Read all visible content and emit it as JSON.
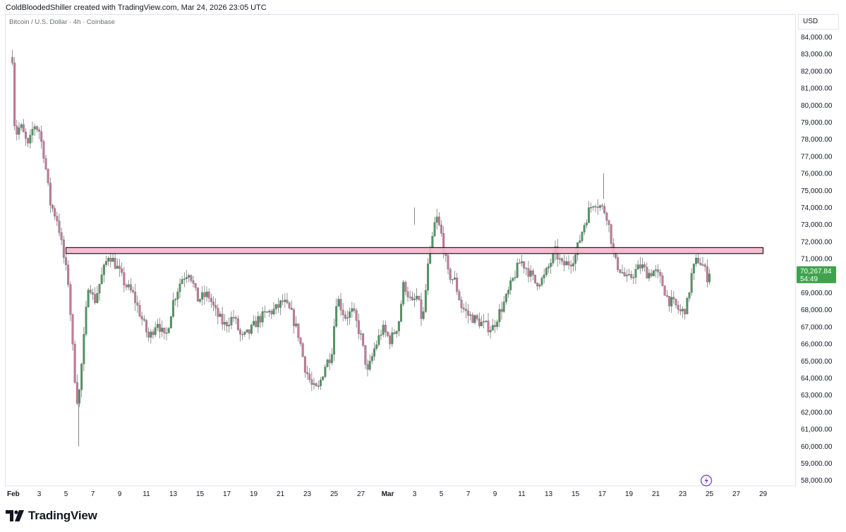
{
  "header": {
    "created_text": "ColdBloodedShiller created with TradingView.com, Mar 24, 2026 23:05 UTC"
  },
  "symbol_info": "Bitcoin / U.S. Dollar · 4h · Coinbase",
  "currency": "USD",
  "footer": {
    "brand": "TradingView",
    "logo_icon": "tradingview-logo-icon"
  },
  "colors": {
    "up": "#4c9a60",
    "down": "#c67a9b",
    "zone_fill": "#f5b6cd",
    "zone_border": "#1a1a1a",
    "last_price_bg": "#3fa34d"
  },
  "chart_data": {
    "type": "candlestick",
    "ylim": [
      57700,
      85300
    ],
    "y_ticks": [
      58000,
      59000,
      60000,
      61000,
      62000,
      63000,
      64000,
      65000,
      66000,
      67000,
      68000,
      69000,
      70000,
      71000,
      72000,
      73000,
      74000,
      75000,
      76000,
      77000,
      78000,
      79000,
      80000,
      81000,
      82000,
      83000,
      84000
    ],
    "y_tick_labels": [
      "58,000.00",
      "59,000.00",
      "60,000.00",
      "61,000.00",
      "62,000.00",
      "63,000.00",
      "64,000.00",
      "65,000.00",
      "66,000.00",
      "67,000.00",
      "68,000.00",
      "69,000.00",
      "70,000.00",
      "71,000.00",
      "72,000.00",
      "73,000.00",
      "74,000.00",
      "75,000.00",
      "76,000.00",
      "77,000.00",
      "78,000.00",
      "79,000.00",
      "80,000.00",
      "81,000.00",
      "82,000.00",
      "83,000.00",
      "84,000.00"
    ],
    "x_axis_days_range": [
      1,
      29
    ],
    "x_ticks": [
      {
        "day": 1,
        "label": "Feb"
      },
      {
        "day": 3,
        "label": "3"
      },
      {
        "day": 5,
        "label": "5"
      },
      {
        "day": 7,
        "label": "7"
      },
      {
        "day": 9,
        "label": "9"
      },
      {
        "day": 11,
        "label": "11"
      },
      {
        "day": 13,
        "label": "13"
      },
      {
        "day": 15,
        "label": "15"
      },
      {
        "day": 17,
        "label": "17"
      },
      {
        "day": 19,
        "label": "19"
      },
      {
        "day": 21,
        "label": "21"
      },
      {
        "day": 23,
        "label": "23"
      },
      {
        "day": 25,
        "label": "25"
      },
      {
        "day": 27,
        "label": "27"
      },
      {
        "day": 29,
        "label": "Mar"
      },
      {
        "day": 31,
        "label": "3"
      },
      {
        "day": 33,
        "label": "5"
      },
      {
        "day": 35,
        "label": "7"
      },
      {
        "day": 37,
        "label": "9"
      },
      {
        "day": 39,
        "label": "11"
      },
      {
        "day": 41,
        "label": "13"
      },
      {
        "day": 43,
        "label": "15"
      },
      {
        "day": 45,
        "label": "17"
      },
      {
        "day": 47,
        "label": "19"
      },
      {
        "day": 49,
        "label": "21"
      },
      {
        "day": 51,
        "label": "23"
      },
      {
        "day": 53,
        "label": "25"
      },
      {
        "day": 55,
        "label": "27"
      },
      {
        "day": 57,
        "label": "29"
      }
    ],
    "x_range_days": [
      1,
      57
    ],
    "path_keypoints": [
      [
        1.0,
        82800
      ],
      [
        1.2,
        78200
      ],
      [
        1.6,
        78800
      ],
      [
        2.2,
        77500
      ],
      [
        2.6,
        78900
      ],
      [
        3.0,
        78500
      ],
      [
        3.4,
        76900
      ],
      [
        3.8,
        74300
      ],
      [
        4.4,
        73200
      ],
      [
        4.8,
        71200
      ],
      [
        5.2,
        69500
      ],
      [
        5.6,
        64500
      ],
      [
        5.9,
        62300
      ],
      [
        6.3,
        66000
      ],
      [
        6.7,
        69800
      ],
      [
        7.1,
        68400
      ],
      [
        7.6,
        69800
      ],
      [
        8.2,
        71300
      ],
      [
        8.8,
        70500
      ],
      [
        9.4,
        69500
      ],
      [
        10.0,
        68900
      ],
      [
        10.6,
        67600
      ],
      [
        11.2,
        66300
      ],
      [
        11.8,
        67400
      ],
      [
        12.4,
        66200
      ],
      [
        13.0,
        68500
      ],
      [
        13.6,
        69800
      ],
      [
        14.2,
        70300
      ],
      [
        14.8,
        68600
      ],
      [
        15.6,
        68900
      ],
      [
        16.2,
        67800
      ],
      [
        16.8,
        67100
      ],
      [
        17.5,
        67600
      ],
      [
        18.1,
        66300
      ],
      [
        18.7,
        66700
      ],
      [
        19.3,
        67400
      ],
      [
        20.0,
        67800
      ],
      [
        20.6,
        68000
      ],
      [
        21.2,
        68500
      ],
      [
        21.8,
        67800
      ],
      [
        22.4,
        66400
      ],
      [
        22.8,
        64700
      ],
      [
        23.4,
        63400
      ],
      [
        23.8,
        63300
      ],
      [
        24.3,
        64700
      ],
      [
        24.8,
        65400
      ],
      [
        25.2,
        68800
      ],
      [
        25.8,
        67600
      ],
      [
        26.4,
        67900
      ],
      [
        27.0,
        66400
      ],
      [
        27.5,
        64300
      ],
      [
        28.0,
        65700
      ],
      [
        28.6,
        66900
      ],
      [
        29.2,
        66200
      ],
      [
        29.8,
        67200
      ],
      [
        30.2,
        69600
      ],
      [
        30.8,
        68300
      ],
      [
        31.2,
        68800
      ],
      [
        31.6,
        67200
      ],
      [
        32.0,
        70500
      ],
      [
        32.6,
        73500
      ],
      [
        33.0,
        72400
      ],
      [
        33.5,
        70100
      ],
      [
        34.0,
        69700
      ],
      [
        34.5,
        68200
      ],
      [
        35.0,
        67700
      ],
      [
        35.6,
        67400
      ],
      [
        36.2,
        67100
      ],
      [
        36.8,
        66900
      ],
      [
        37.3,
        67800
      ],
      [
        37.8,
        68600
      ],
      [
        38.4,
        69900
      ],
      [
        38.9,
        70900
      ],
      [
        39.4,
        70400
      ],
      [
        40.0,
        69600
      ],
      [
        40.6,
        69800
      ],
      [
        41.0,
        70500
      ],
      [
        41.5,
        71400
      ],
      [
        42.0,
        70600
      ],
      [
        42.6,
        70800
      ],
      [
        43.0,
        71200
      ],
      [
        43.6,
        72900
      ],
      [
        44.0,
        73800
      ],
      [
        44.4,
        74400
      ],
      [
        44.8,
        74100
      ],
      [
        45.3,
        73700
      ],
      [
        45.6,
        72500
      ],
      [
        45.9,
        70900
      ],
      [
        46.4,
        70300
      ],
      [
        46.9,
        69700
      ],
      [
        47.4,
        70200
      ],
      [
        47.9,
        70600
      ],
      [
        48.4,
        70100
      ],
      [
        48.9,
        70300
      ],
      [
        49.4,
        69700
      ],
      [
        49.9,
        68600
      ],
      [
        50.4,
        68300
      ],
      [
        50.9,
        67800
      ],
      [
        51.3,
        68200
      ],
      [
        51.7,
        70200
      ],
      [
        52.1,
        71000
      ],
      [
        52.5,
        70600
      ],
      [
        52.9,
        69800
      ],
      [
        53.0,
        70268
      ]
    ],
    "resistance_zone": {
      "low": 71300,
      "high": 71650,
      "x_start_day": 5.0,
      "x_end_day": 57.0
    },
    "last_price": {
      "value_label": "70,267.84",
      "countdown": "54:49",
      "value": 70267.84
    }
  }
}
